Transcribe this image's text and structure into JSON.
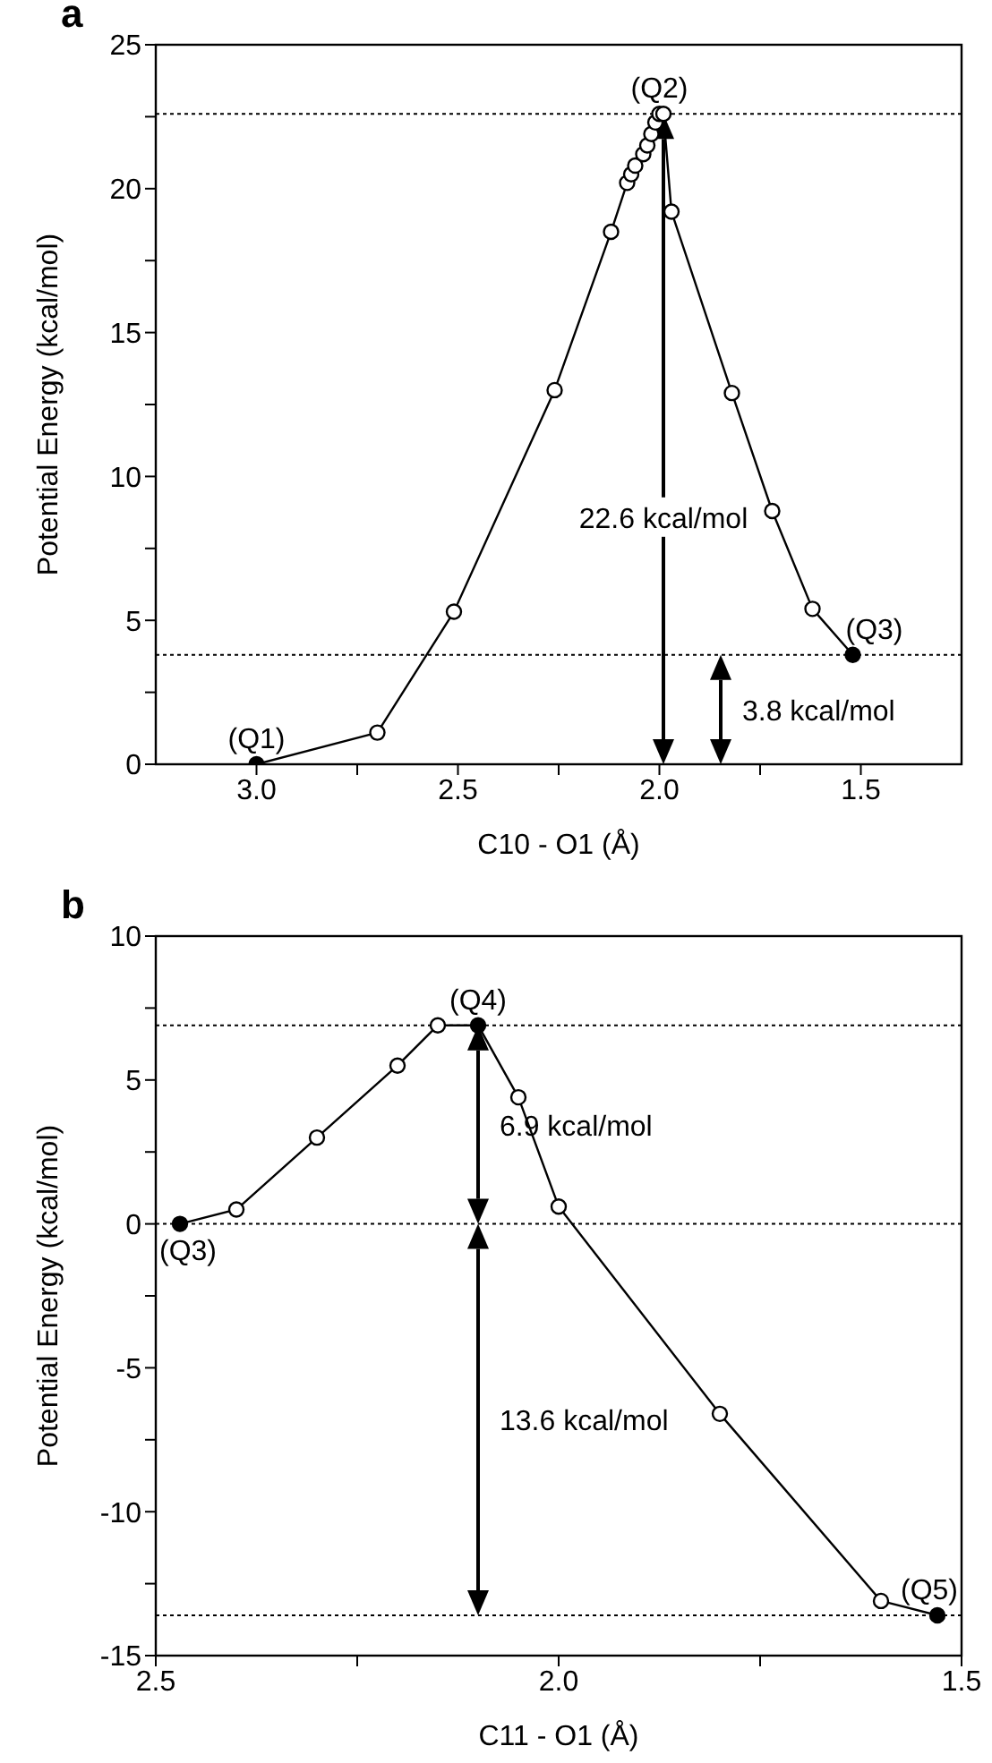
{
  "chart_data": [
    {
      "type": "line",
      "title": "a",
      "xlabel": "C10 - O1 (Å)",
      "ylabel": "Potential Energy (kcal/mol)",
      "marker": "circle",
      "xlim": [
        3.25,
        1.25
      ],
      "xticks": [
        {
          "value": 3,
          "label": "3.0"
        },
        {
          "value": 2.75,
          "label": null
        },
        {
          "value": 2.5,
          "label": "2.5"
        },
        {
          "value": 2.25,
          "label": null
        },
        {
          "value": 2,
          "label": "2.0"
        },
        {
          "value": 1.75,
          "label": null
        },
        {
          "value": 1.5,
          "label": "1.5"
        }
      ],
      "ylim": [
        0,
        25
      ],
      "yticks": [
        0,
        {
          "value": 2.5,
          "label": null
        },
        5,
        {
          "value": 7.5,
          "label": null
        },
        10,
        {
          "value": 12.5,
          "label": null
        },
        15,
        {
          "value": 17.5,
          "label": null
        },
        20,
        {
          "value": 22.5,
          "label": null
        },
        25
      ],
      "series": [
        {
          "color": "#000000",
          "x": [
            3.0,
            2.7,
            2.51,
            2.26,
            2.12,
            2.08,
            2.07,
            2.06,
            2.04,
            2.03,
            2.02,
            2.01,
            2.0,
            1.99,
            1.97,
            1.82,
            1.72,
            1.62,
            1.52
          ],
          "values": [
            0,
            1.1,
            5.3,
            13.0,
            18.5,
            20.2,
            20.5,
            20.8,
            21.2,
            21.5,
            21.9,
            22.3,
            22.6,
            22.6,
            19.2,
            12.9,
            8.8,
            5.4,
            3.8
          ],
          "colors": [
            "#000000",
            "#ffffff",
            "#ffffff",
            "#ffffff",
            "#ffffff",
            "#ffffff",
            "#ffffff",
            "#ffffff",
            "#ffffff",
            "#ffffff",
            "#ffffff",
            "#ffffff",
            "#ffffff",
            "#ffffff",
            "#ffffff",
            "#ffffff",
            "#ffffff",
            "#ffffff",
            "#000000"
          ],
          "value_labels": [
            "(Q1)",
            null,
            null,
            null,
            null,
            null,
            null,
            null,
            null,
            null,
            null,
            null,
            "(Q2)",
            null,
            null,
            null,
            null,
            null,
            "(Q3)"
          ]
        }
      ],
      "ref_lines": [
        {
          "axis": "y",
          "value": 22.6,
          "color": "#000000",
          "line_style": "dotted"
        },
        {
          "axis": "y",
          "value": 3.8,
          "color": "#000000",
          "line_style": "dotted"
        }
      ],
      "annotations": [
        "22.6 kcal/mol",
        "3.8 kcal/mol"
      ]
    },
    {
      "type": "line",
      "title": "b",
      "xlabel": "C11 - O1 (Å)",
      "ylabel": "Potential Energy (kcal/mol)",
      "marker": "circle",
      "xlim": [
        2.5,
        1.5
      ],
      "xticks": [
        {
          "value": 2.5,
          "label": "2.5"
        },
        {
          "value": 2.25,
          "label": null
        },
        {
          "value": 2,
          "label": "2.0"
        },
        {
          "value": 1.75,
          "label": null
        },
        {
          "value": 1.5,
          "label": "1.5"
        }
      ],
      "ylim": [
        -15,
        10
      ],
      "yticks": [
        -15,
        {
          "value": -12.5,
          "label": null
        },
        -10,
        {
          "value": -7.5,
          "label": null
        },
        -5,
        {
          "value": -2.5,
          "label": null
        },
        0,
        {
          "value": 2.5,
          "label": null
        },
        5,
        {
          "value": 7.5,
          "label": null
        },
        10
      ],
      "series": [
        {
          "color": "#000000",
          "x": [
            2.47,
            2.4,
            2.3,
            2.2,
            2.15,
            2.1,
            2.05,
            2.0,
            1.8,
            1.6,
            1.53
          ],
          "values": [
            0,
            0.5,
            3.0,
            5.5,
            6.9,
            6.9,
            4.4,
            0.6,
            -6.6,
            -13.1,
            -13.6
          ],
          "colors": [
            "#000000",
            "#ffffff",
            "#ffffff",
            "#ffffff",
            "#ffffff",
            "#000000",
            "#ffffff",
            "#ffffff",
            "#ffffff",
            "#ffffff",
            "#000000"
          ],
          "value_labels": [
            "(Q3)",
            null,
            null,
            null,
            null,
            "(Q4)",
            null,
            null,
            null,
            null,
            "(Q5)"
          ]
        }
      ],
      "ref_lines": [
        {
          "axis": "y",
          "value": 6.9,
          "color": "#000000",
          "line_style": "dotted"
        },
        {
          "axis": "y",
          "value": 0,
          "color": "#000000",
          "line_style": "dotted"
        },
        {
          "axis": "y",
          "value": -13.6,
          "color": "#000000",
          "line_style": "dotted"
        }
      ],
      "annotations": [
        "6.9 kcal/mol",
        "13.6 kcal/mol"
      ]
    }
  ]
}
